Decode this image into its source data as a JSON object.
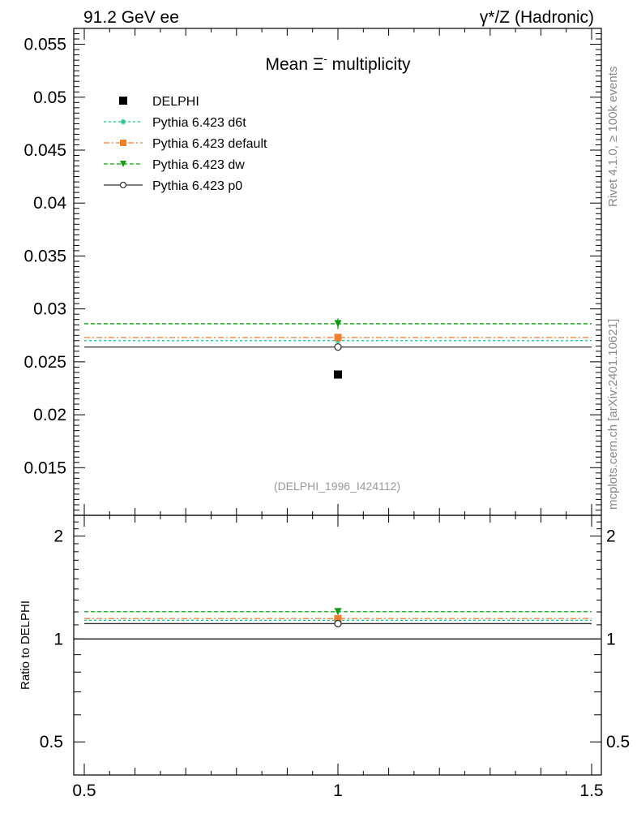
{
  "header": {
    "left_title": "91.2 GeV ee",
    "right_title": "γ*/Z (Hadronic)"
  },
  "side_labels": {
    "rivet": "Rivet 4.1.0, ≥ 100k events",
    "mcplots": "mcplots.cern.ch [arXiv:2401.10621]"
  },
  "chart_data": {
    "type": "scatter",
    "title_prefix": "Mean ",
    "title_symbol": "Ξ",
    "title_superscript": "-",
    "title_suffix": " multiplicity",
    "analysis_id": "(DELPHI_1996_I424112)",
    "x_range": [
      0.5,
      1.5
    ],
    "x_ticks": [
      {
        "value": 0.5,
        "label": "0.5"
      },
      {
        "value": 1,
        "label": "1"
      },
      {
        "value": 1.5,
        "label": "1.5"
      }
    ],
    "main": {
      "y_range": [
        0.0105,
        0.0565
      ],
      "y_ticks": [
        {
          "value": 0.015,
          "label": "0.015"
        },
        {
          "value": 0.02,
          "label": "0.02"
        },
        {
          "value": 0.025,
          "label": "0.025"
        },
        {
          "value": 0.03,
          "label": "0.03"
        },
        {
          "value": 0.035,
          "label": "0.035"
        },
        {
          "value": 0.04,
          "label": "0.04"
        },
        {
          "value": 0.045,
          "label": "0.045"
        },
        {
          "value": 0.05,
          "label": "0.05"
        },
        {
          "value": 0.055,
          "label": "0.055"
        }
      ]
    },
    "ratio": {
      "ylabel": "Ratio to DELPHI",
      "y_range": [
        0.4,
        2.3
      ],
      "y_ticks": [
        {
          "value": 0.5,
          "label": "0.5"
        },
        {
          "value": 1,
          "label": "1"
        },
        {
          "value": 2,
          "label": "2"
        }
      ]
    },
    "data_point": {
      "name": "DELPHI",
      "x": 1,
      "y": 0.0238,
      "yerr": 0.0001,
      "color": "#000000",
      "marker": "square"
    },
    "series": [
      {
        "name": "Pythia 6.423 d6t",
        "value": 0.027,
        "err": 0.0002,
        "color": "#1fbf8f",
        "dash": "3,3",
        "marker": "star",
        "ratio": 1.134
      },
      {
        "name": "Pythia 6.423 default",
        "value": 0.0273,
        "err": 0.0002,
        "color": "#f07f2e",
        "dash": "7,3,2,3",
        "marker": "square",
        "ratio": 1.147
      },
      {
        "name": "Pythia 6.423 dw",
        "value": 0.0286,
        "err": 0.0005,
        "color": "#119c11",
        "dash": "5,3",
        "marker": "triangle-down",
        "ratio": 1.202
      },
      {
        "name": "Pythia 6.423 p0",
        "value": 0.0264,
        "err": 0.0003,
        "color": "#333333",
        "dash": "",
        "marker": "open-circle",
        "ratio": 1.109
      }
    ]
  }
}
